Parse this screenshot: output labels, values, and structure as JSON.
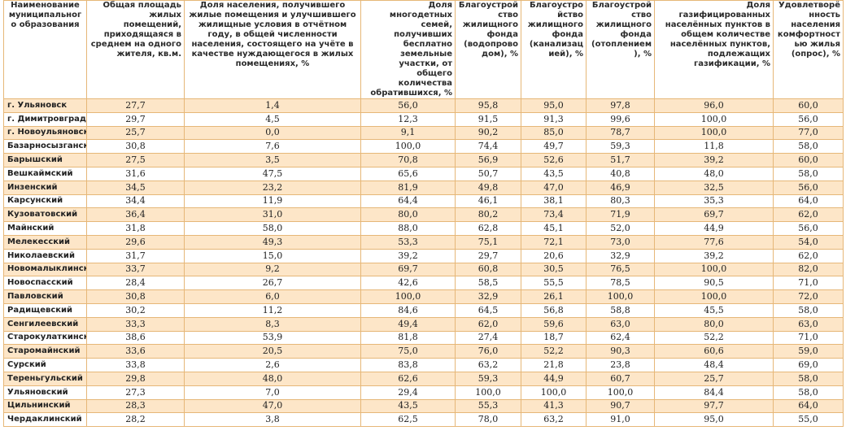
{
  "table": {
    "headers": [
      "Наименование муниципального образования",
      "Общая площадь жилых помещений, приходящаяся в среднем на одного жителя, кв.м.",
      "Доля населения, получившего жилые помещения и улучшившего жилищные условия в отчётном году, в общей численности населения, состоящего на учёте в качестве нуждающегося в жилых помещениях, %",
      "Доля многодетных семей, получивших бесплатно земельные участки, от общего количества обратившихся, %",
      "Благоустройство жилищного фонда (водопроводом), %",
      "Благоустройство жилищного фонда (канализацией), %",
      "Благоустройство жилищного фонда (отоплением), %",
      "Доля газифицированных населённых пунктов в общем количестве населённых пунктов, подлежащих газификации, %",
      "Удовлетворённость населения комфортностью жилья (опрос), %"
    ],
    "rows": [
      [
        "г. Ульяновск",
        "27,7",
        "1,4",
        "56,0",
        "95,8",
        "95,0",
        "97,8",
        "96,0",
        "60,0"
      ],
      [
        "г. Димитровград",
        "29,7",
        "4,5",
        "12,3",
        "91,5",
        "91,3",
        "99,6",
        "100,0",
        "56,0"
      ],
      [
        "г. Новоульяновск",
        "25,7",
        "0,0",
        "9,1",
        "90,2",
        "85,0",
        "78,7",
        "100,0",
        "77,0"
      ],
      [
        "Базарносызганский",
        "30,8",
        "7,6",
        "100,0",
        "74,4",
        "49,7",
        "59,3",
        "11,8",
        "58,0"
      ],
      [
        "Барышский",
        "27,5",
        "3,5",
        "70,8",
        "56,9",
        "52,6",
        "51,7",
        "39,2",
        "60,0"
      ],
      [
        "Вешкаймский",
        "31,6",
        "47,5",
        "65,6",
        "50,7",
        "43,5",
        "40,8",
        "48,0",
        "58,0"
      ],
      [
        "Инзенский",
        "34,5",
        "23,2",
        "81,9",
        "49,8",
        "47,0",
        "46,9",
        "32,5",
        "56,0"
      ],
      [
        "Карсунский",
        "34,4",
        "11,9",
        "64,4",
        "46,1",
        "38,1",
        "80,3",
        "35,3",
        "64,0"
      ],
      [
        "Кузоватовский",
        "36,4",
        "31,0",
        "80,0",
        "80,2",
        "73,4",
        "71,9",
        "69,7",
        "62,0"
      ],
      [
        "Майнский",
        "31,8",
        "58,0",
        "88,0",
        "62,8",
        "45,1",
        "52,0",
        "44,9",
        "56,0"
      ],
      [
        "Мелекесский",
        "29,6",
        "49,3",
        "53,3",
        "75,1",
        "72,1",
        "73,0",
        "77,6",
        "54,0"
      ],
      [
        "Николаевский",
        "31,7",
        "15,0",
        "39,2",
        "29,7",
        "20,6",
        "32,9",
        "39,2",
        "62,0"
      ],
      [
        "Новомалыклинский",
        "33,7",
        "9,2",
        "69,7",
        "60,8",
        "30,5",
        "76,5",
        "100,0",
        "82,0"
      ],
      [
        "Новоспасский",
        "28,4",
        "26,7",
        "42,6",
        "58,5",
        "55,5",
        "78,5",
        "90,5",
        "71,0"
      ],
      [
        "Павловский",
        "30,8",
        "6,0",
        "100,0",
        "32,9",
        "26,1",
        "100,0",
        "100,0",
        "72,0"
      ],
      [
        "Радищевский",
        "30,2",
        "11,2",
        "84,6",
        "64,5",
        "56,8",
        "58,8",
        "45,5",
        "58,0"
      ],
      [
        "Сенгилеевский",
        "33,3",
        "8,3",
        "49,4",
        "62,0",
        "59,6",
        "63,0",
        "80,0",
        "63,0"
      ],
      [
        "Старокулаткинский",
        "38,6",
        "53,9",
        "81,8",
        "27,4",
        "18,7",
        "62,4",
        "52,2",
        "71,0"
      ],
      [
        "Старомайнский",
        "33,6",
        "20,5",
        "75,0",
        "76,0",
        "52,2",
        "90,3",
        "60,6",
        "59,0"
      ],
      [
        "Сурский",
        "33,8",
        "2,6",
        "83,8",
        "63,2",
        "21,8",
        "23,8",
        "48,4",
        "69,0"
      ],
      [
        "Тереньгульский",
        "29,8",
        "48,0",
        "62,6",
        "59,3",
        "44,9",
        "60,7",
        "25,7",
        "58,0"
      ],
      [
        "Ульяновский",
        "27,3",
        "7,0",
        "29,4",
        "100,0",
        "100,0",
        "100,0",
        "84,4",
        "58,0"
      ],
      [
        "Цильнинский",
        "28,3",
        "47,0",
        "43,5",
        "55,3",
        "41,3",
        "90,7",
        "97,7",
        "64,0"
      ],
      [
        "Чердаклинский",
        "28,2",
        "3,8",
        "62,5",
        "78,0",
        "63,2",
        "91,0",
        "95,0",
        "55,0"
      ]
    ]
  }
}
